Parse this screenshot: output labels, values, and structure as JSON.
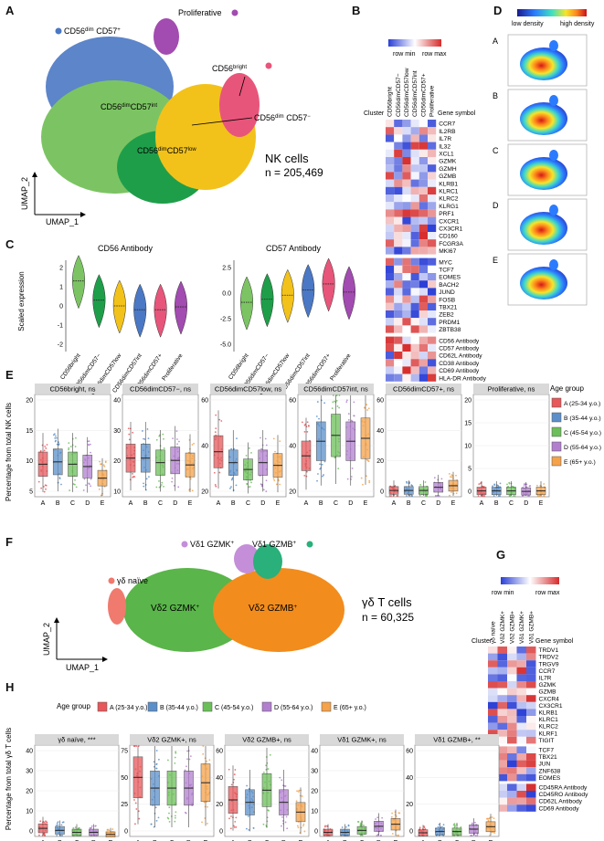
{
  "panels": {
    "A": {
      "letter": "A",
      "title": "NK cells",
      "count": "n = 205,469",
      "axis_x": "UMAP_1",
      "axis_y": "UMAP_2",
      "clusters": [
        {
          "key": "CD56bright",
          "parts": [
            [
              "CD56",
              ""
            ],
            [
              "bright",
              "sup"
            ]
          ],
          "color": "#e8557a"
        },
        {
          "key": "CD56dimCD57-",
          "parts": [
            [
              "CD56",
              ""
            ],
            [
              "dim",
              "sup"
            ],
            [
              " CD57",
              ""
            ],
            [
              "−",
              "sup"
            ]
          ],
          "color": "#f2c21b"
        },
        {
          "key": "CD56dimCD57low",
          "parts": [
            [
              "CD56",
              ""
            ],
            [
              "dim",
              "sup"
            ]
          ],
          "parts2": [
            [
              "CD57",
              ""
            ],
            [
              "low",
              "sup"
            ]
          ],
          "color": "#1f9e4a"
        },
        {
          "key": "CD56dimCD57int",
          "parts": [
            [
              "CD56",
              ""
            ],
            [
              "dim",
              "sup"
            ]
          ],
          "parts2": [
            [
              "CD57",
              ""
            ],
            [
              "int",
              "sup"
            ]
          ],
          "color": "#7cc463"
        },
        {
          "key": "CD56dimCD57+",
          "parts": [
            [
              "CD56",
              ""
            ],
            [
              "dim",
              "sup"
            ],
            [
              " CD57",
              ""
            ],
            [
              "+",
              "sup"
            ]
          ],
          "color": "#4a78c4"
        },
        {
          "key": "Proliferative",
          "parts": [
            [
              "Proliferative",
              ""
            ]
          ],
          "color": "#a24bb0"
        }
      ]
    },
    "B": {
      "letter": "B",
      "legend_min": "row min",
      "legend_max": "row max",
      "cluster_label": "Cluster",
      "gene_header": "Gene symbol",
      "columns": [
        "CD56bright",
        "CD56dimCD57−",
        "CD56dimCD57low",
        "CD56dimCD57int",
        "CD56dimCD57+",
        "Proliferative"
      ],
      "blocks": [
        [
          "CCR7",
          "IL2RB",
          "IL7R",
          "IL32",
          "XCL1",
          "GZMK",
          "GZMH",
          "GZMB",
          "KLRB1",
          "KLRC1",
          "KLRC2",
          "KLRG1",
          "PRF1",
          "CXCR1",
          "CX3CR1",
          "CD160",
          "FCGR3A",
          "MKI67"
        ],
        [
          "MYC",
          "TCF7",
          "EOMES",
          "BACH2",
          "JUND",
          "FOSB",
          "TBX21",
          "ZEB2",
          "PRDM1",
          "ZBTB38"
        ],
        [
          "CD56 Antibody",
          "CD57 Antibody",
          "CD62L Antibody",
          "CD38 Antibody",
          "CD69 Antibody",
          "HLA-DR Antibody"
        ]
      ]
    },
    "C": {
      "letter": "C",
      "ylabel": "Scaled expression",
      "plots": [
        {
          "title": "CD56 Antibody",
          "yticks": [
            "2",
            "1",
            "0",
            "-1",
            "-2"
          ],
          "medians": [
            1.3,
            0.3,
            0.0,
            -0.2,
            -0.2,
            -0.05
          ]
        },
        {
          "title": "CD57 Antibody",
          "yticks": [
            "2.5",
            "0.0",
            "-2.5",
            "-5.0"
          ],
          "medians": [
            -0.9,
            -0.6,
            -0.2,
            0.3,
            0.9,
            0.1
          ]
        }
      ],
      "categories": [
        "CD56bright",
        "CD56dimCD57−",
        "CD56dimCD57low",
        "CD56dimCD57int",
        "CD56dimCD57+",
        "Proliferative"
      ]
    },
    "D": {
      "letter": "D",
      "legend_low": "low density",
      "legend_high": "high density",
      "groups": [
        "A",
        "B",
        "C",
        "D",
        "E"
      ]
    },
    "E": {
      "letter": "E",
      "ylabel": "Percentage from total NK cells",
      "legend_title": "Age group",
      "facets": [
        {
          "strip": "CD56bright, ns",
          "yticks": [
            "20",
            "15",
            "10",
            "5"
          ],
          "ymax": 22,
          "medians": [
            7,
            7.5,
            7,
            6.5,
            4
          ]
        },
        {
          "strip": "CD56dimCD57−, ns",
          "yticks": [
            "40",
            "30",
            "20",
            "10"
          ],
          "ymax": 45,
          "medians": [
            17,
            17,
            15,
            16,
            14
          ]
        },
        {
          "strip": "CD56dimCD57low, ns",
          "yticks": [
            "60",
            "40",
            "20"
          ],
          "ymax": 75,
          "medians": [
            33,
            25,
            20,
            25,
            23
          ]
        },
        {
          "strip": "CD56dimCD57int, ns",
          "yticks": [
            "60",
            "40",
            "20"
          ],
          "ymax": 70,
          "medians": [
            28,
            38,
            42,
            38,
            40
          ]
        },
        {
          "strip": "CD56dimCD57+, ns",
          "yticks": [
            "60",
            "40",
            "20",
            "0"
          ],
          "ymax": 65,
          "medians": [
            4,
            4,
            4,
            6,
            7
          ]
        },
        {
          "strip": "Proliferative, ns",
          "yticks": [
            "20",
            "15",
            "10",
            "5",
            "0"
          ],
          "ymax": 21,
          "medians": [
            1.2,
            1.2,
            1.2,
            1.1,
            1.2
          ]
        }
      ],
      "xcats": [
        "A",
        "B",
        "C",
        "D",
        "E"
      ]
    },
    "F": {
      "letter": "F",
      "title": "γδ T cells",
      "count": "n = 60,325",
      "axis_x": "UMAP_1",
      "axis_y": "UMAP_2",
      "labels": [
        {
          "key": "vd1gzmk",
          "text": "Vδ1 GZMK",
          "sup": "+",
          "color": "#c48fd8"
        },
        {
          "key": "vd1gzmb",
          "text": "Vδ1 GZMB",
          "sup": "+",
          "color": "#2ab07a"
        },
        {
          "key": "naive",
          "text": "γδ naïve",
          "sup": "",
          "color": "#f07a6e"
        },
        {
          "key": "vd2gzmk",
          "text": "Vδ2 GZMK",
          "sup": "+",
          "color": "#5ab54a"
        },
        {
          "key": "vd2gzmb",
          "text": "Vδ2 GZMB",
          "sup": "+",
          "color": "#f28c1c"
        }
      ]
    },
    "G": {
      "letter": "G",
      "legend_min": "row min",
      "legend_max": "row max",
      "cluster_label": "Cluster",
      "gene_header": "Gene symbol",
      "columns": [
        "γδ naïve",
        "Vδ2 GZMK+",
        "Vδ2 GZMB+",
        "Vδ1 GZMK+",
        "Vδ1 GZMB+"
      ],
      "blocks": [
        [
          "TRDV1",
          "TRDV2",
          "TRGV9",
          "CCR7",
          "IL7R",
          "GZMK",
          "GZMB",
          "CXCR4",
          "CX3CR1",
          "KLRB1",
          "KLRC1",
          "KLRC2",
          "KLRF1",
          "TIGIT"
        ],
        [
          "TCF7",
          "TBX21",
          "JUN",
          "ZNF638",
          "EOMES"
        ],
        [
          "CD45RA Antibody",
          "CD45RO Antibody",
          "CD62L Antibody",
          "CD69 Antibody"
        ]
      ]
    },
    "H": {
      "letter": "H",
      "ylabel": "Percentage from total γδ T cells",
      "legend_title": "Age group",
      "facets": [
        {
          "strip": "γδ naïve, ***",
          "yticks": [
            "40",
            "30",
            "20",
            "10",
            "0"
          ],
          "ymax": 45,
          "medians": [
            4,
            3,
            2,
            2,
            1
          ]
        },
        {
          "strip": "Vδ2 GZMK+, ns",
          "yticks": [
            "75",
            "50",
            "25",
            "0"
          ],
          "ymax": 85,
          "medians": [
            55,
            45,
            45,
            45,
            50
          ]
        },
        {
          "strip": "Vδ2 GZMB+, ns",
          "yticks": [
            "60",
            "40",
            "20",
            "0"
          ],
          "ymax": 75,
          "medians": [
            30,
            28,
            38,
            28,
            20
          ]
        },
        {
          "strip": "Vδ1 GZMK+, ns",
          "yticks": [
            "40",
            "30",
            "20",
            "10",
            "0"
          ],
          "ymax": 45,
          "medians": [
            2,
            2,
            3,
            5,
            6
          ]
        },
        {
          "strip": "Vδ1 GZMB+, **",
          "yticks": [
            "60",
            "40",
            "20",
            "0"
          ],
          "ymax": 75,
          "medians": [
            3,
            4,
            4,
            6,
            8
          ]
        }
      ],
      "xcats": [
        "A",
        "B",
        "C",
        "D",
        "E"
      ]
    }
  },
  "age_groups": [
    {
      "label": "A (25-34 y.o.)",
      "color": "#e8575a"
    },
    {
      "label": "B (35-44 y.o.)",
      "color": "#5b8fc9"
    },
    {
      "label": "C (45-54 y.o.)",
      "color": "#6bbf59"
    },
    {
      "label": "D (55-64 y.o.)",
      "color": "#b27fcf"
    },
    {
      "label": "E (65+ y.o.)",
      "color": "#f5a24a"
    }
  ],
  "chart_data": [
    {
      "type": "scatter",
      "title": "NK cells UMAP",
      "xlabel": "UMAP_1",
      "ylabel": "UMAP_2",
      "series": [
        {
          "name": "CD56bright"
        },
        {
          "name": "CD56dimCD57−"
        },
        {
          "name": "CD56dimCD57low"
        },
        {
          "name": "CD56dimCD57int"
        },
        {
          "name": "CD56dimCD57+"
        },
        {
          "name": "Proliferative"
        }
      ]
    },
    {
      "type": "box",
      "title": "Percentage from total NK cells",
      "categories": [
        "A",
        "B",
        "C",
        "D",
        "E"
      ]
    },
    {
      "type": "box",
      "title": "Percentage from total γδ T cells",
      "categories": [
        "A",
        "B",
        "C",
        "D",
        "E"
      ]
    }
  ]
}
